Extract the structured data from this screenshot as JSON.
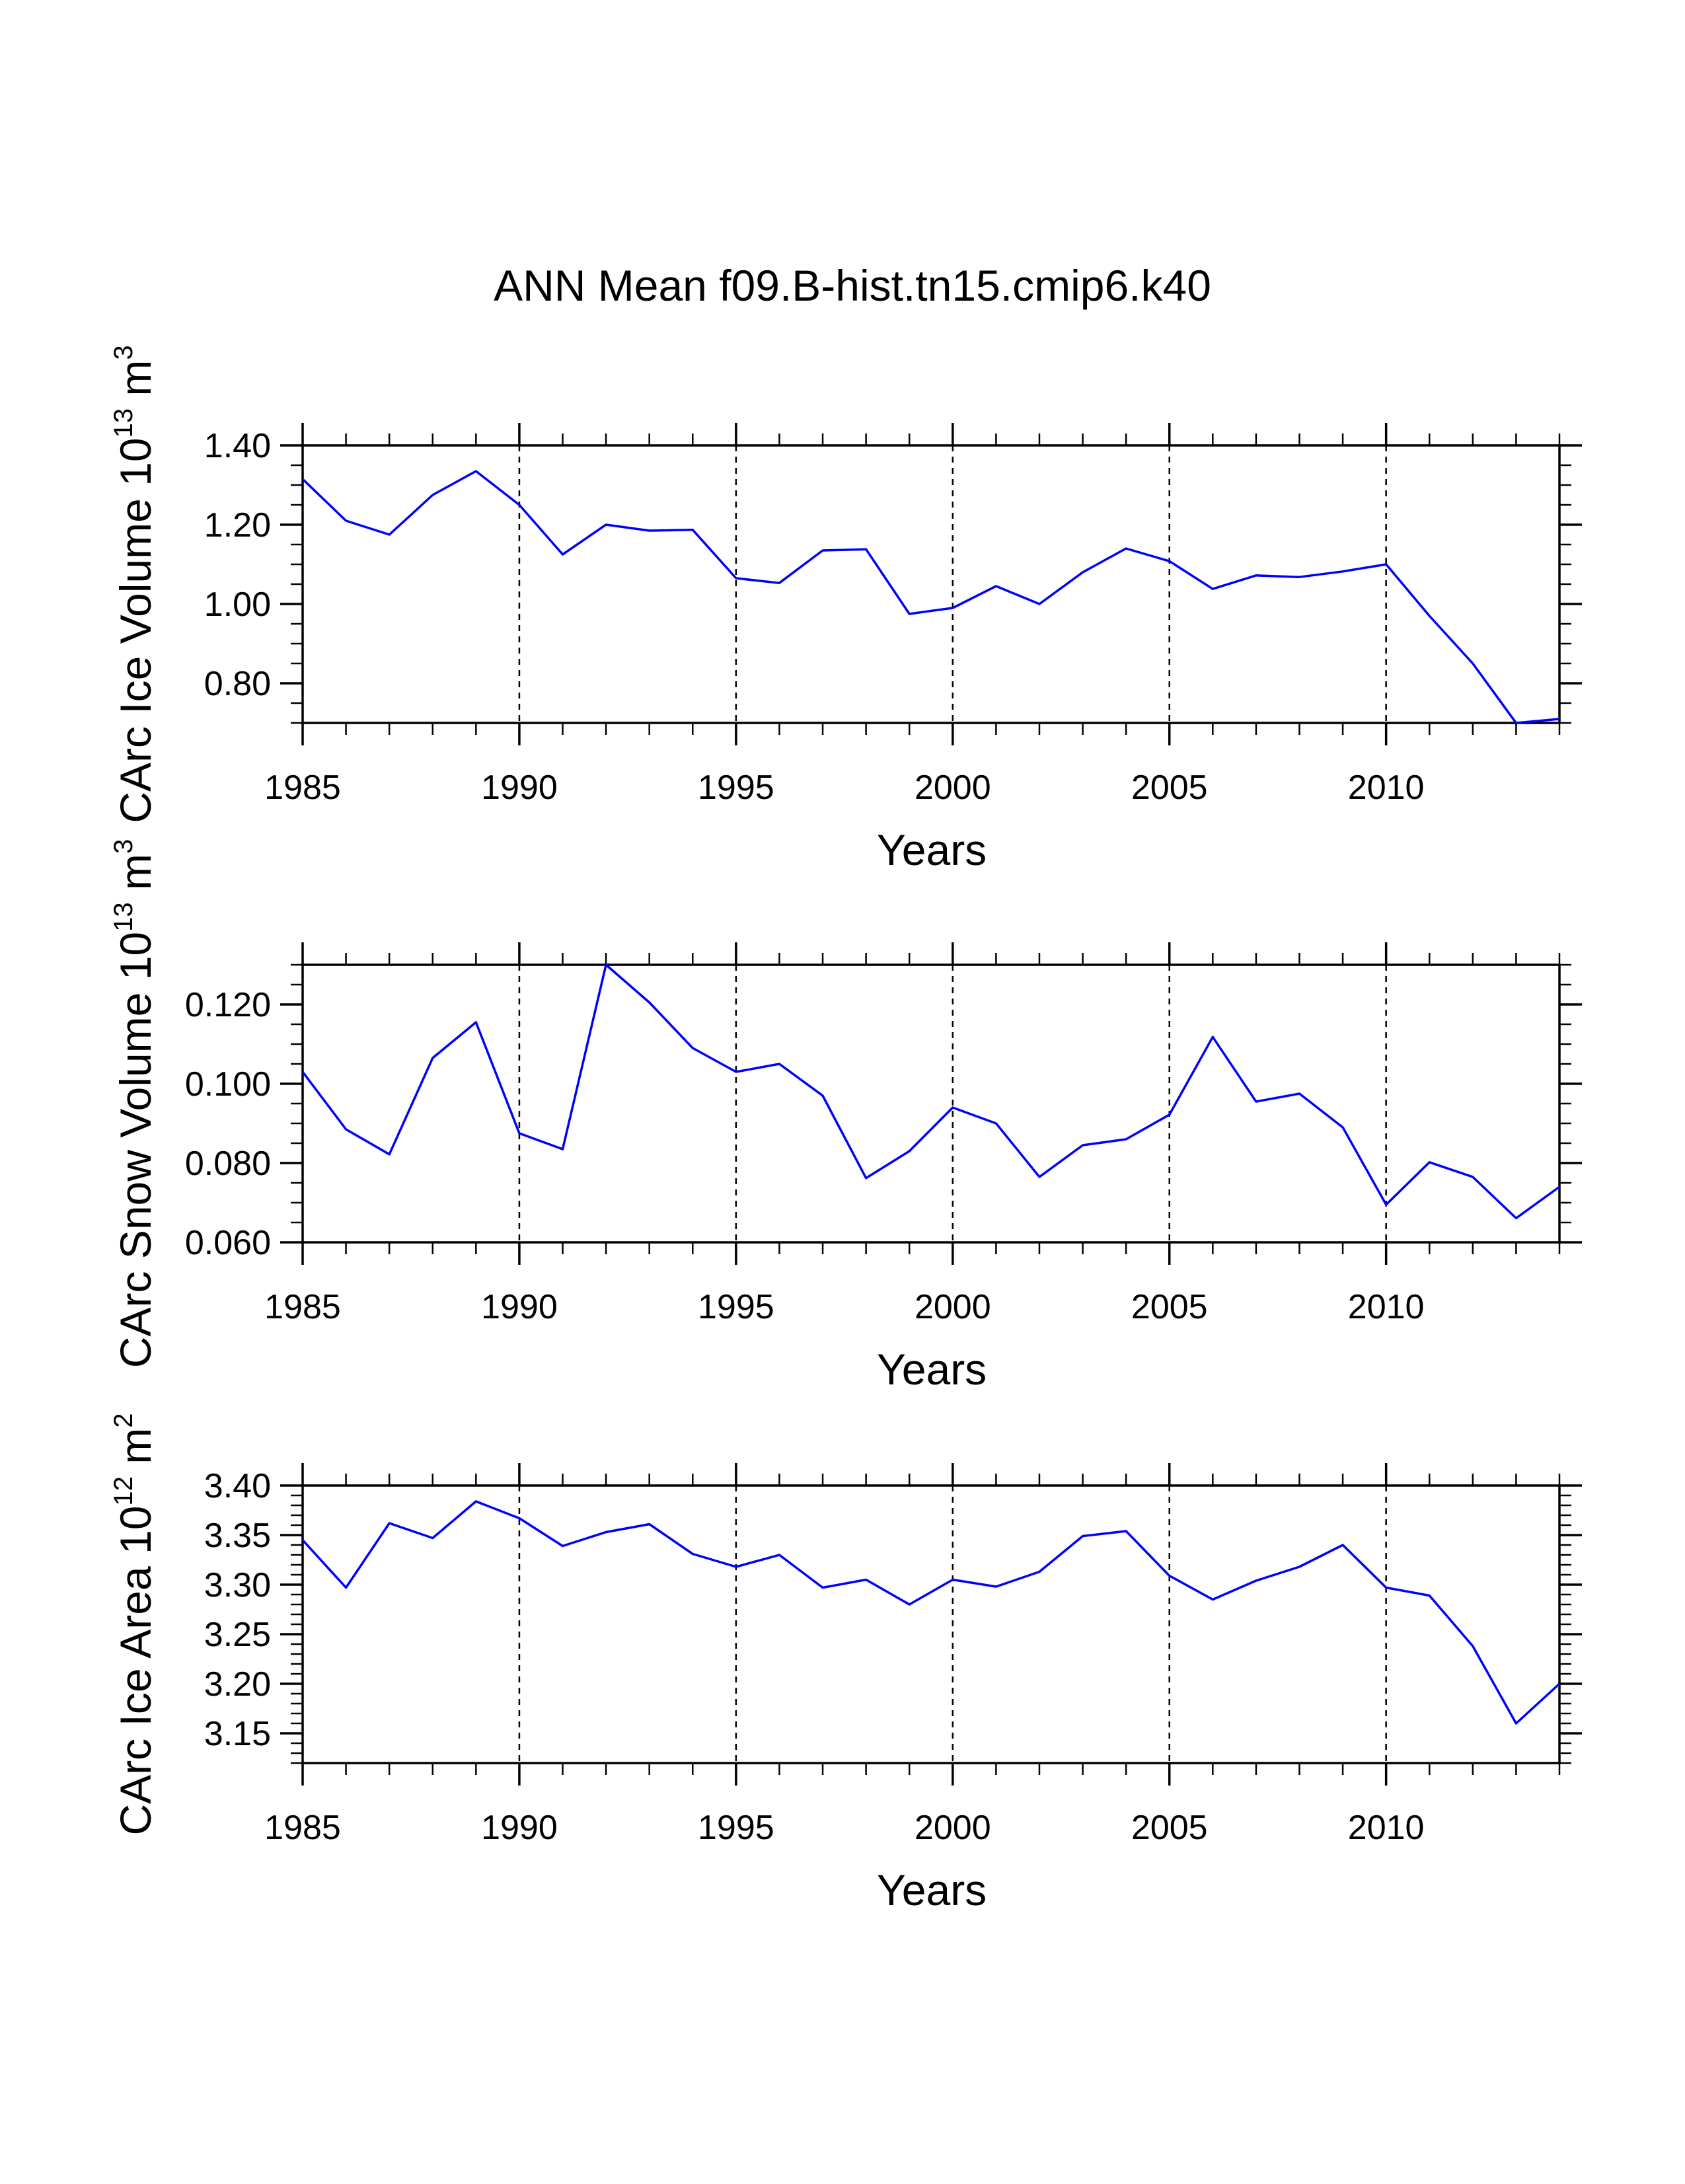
{
  "title": "ANN Mean f09.B-hist.tn15.cmip6.k40",
  "colors": {
    "line": "#0000ff",
    "axis": "#000000",
    "grid": "#000000",
    "background": "#ffffff"
  },
  "chart_data": [
    {
      "type": "line",
      "xlabel": "Years",
      "ylabel": "CArc Ice Volume 10",
      "ylabel_exponent": "13",
      "ylabel_unit": "m",
      "ylabel_unit_exponent": "3",
      "xlim": [
        1985,
        2014
      ],
      "ylim": [
        0.7,
        1.4
      ],
      "x_ticks": [
        1985,
        1990,
        1995,
        2000,
        2005,
        2010
      ],
      "x_tick_labels": [
        "1985",
        "1990",
        "1995",
        "2000",
        "2005",
        "2010"
      ],
      "y_ticks": [
        0.8,
        1.0,
        1.2,
        1.4
      ],
      "y_tick_labels": [
        "0.80",
        "1.00",
        "1.20",
        "1.40"
      ],
      "y_minor_step": 0.05,
      "dashed_gridlines_x": [
        1990,
        1995,
        2000,
        2005,
        2010
      ],
      "x": [
        1985,
        1986,
        1987,
        1988,
        1989,
        1990,
        1991,
        1992,
        1993,
        1994,
        1995,
        1996,
        1997,
        1998,
        1999,
        2000,
        2001,
        2002,
        2003,
        2004,
        2005,
        2006,
        2007,
        2008,
        2009,
        2010,
        2011,
        2012,
        2013,
        2014
      ],
      "values": [
        1.315,
        1.21,
        1.175,
        1.275,
        1.335,
        1.25,
        1.125,
        1.2,
        1.185,
        1.187,
        1.065,
        1.053,
        1.135,
        1.138,
        0.975,
        0.99,
        1.045,
        1.0,
        1.08,
        1.14,
        1.108,
        1.038,
        1.072,
        1.068,
        1.082,
        1.1,
        0.97,
        0.85,
        0.7,
        0.71
      ]
    },
    {
      "type": "line",
      "xlabel": "Years",
      "ylabel": "CArc Snow Volume 10",
      "ylabel_exponent": "13",
      "ylabel_unit": "m",
      "ylabel_unit_exponent": "3",
      "xlim": [
        1985,
        2014
      ],
      "ylim": [
        0.06,
        0.13
      ],
      "x_ticks": [
        1985,
        1990,
        1995,
        2000,
        2005,
        2010
      ],
      "x_tick_labels": [
        "1985",
        "1990",
        "1995",
        "2000",
        "2005",
        "2010"
      ],
      "y_ticks": [
        0.06,
        0.08,
        0.1,
        0.12
      ],
      "y_tick_labels": [
        "0.060",
        "0.080",
        "0.100",
        "0.120"
      ],
      "y_minor_step": 0.005,
      "dashed_gridlines_x": [
        1990,
        1995,
        2000,
        2005,
        2010
      ],
      "x": [
        1985,
        1986,
        1987,
        1988,
        1989,
        1990,
        1991,
        1992,
        1993,
        1994,
        1995,
        1996,
        1997,
        1998,
        1999,
        2000,
        2001,
        2002,
        2003,
        2004,
        2005,
        2006,
        2007,
        2008,
        2009,
        2010,
        2011,
        2012,
        2013,
        2014
      ],
      "values": [
        0.103,
        0.0885,
        0.0822,
        0.1065,
        0.1155,
        0.0875,
        0.0835,
        0.13,
        0.1205,
        0.109,
        0.103,
        0.105,
        0.097,
        0.0762,
        0.083,
        0.094,
        0.09,
        0.0765,
        0.0845,
        0.086,
        0.0922,
        0.1118,
        0.0955,
        0.0975,
        0.089,
        0.0695,
        0.0802,
        0.0765,
        0.0661,
        0.074
      ]
    },
    {
      "type": "line",
      "xlabel": "Years",
      "ylabel": "CArc Ice Area 10",
      "ylabel_exponent": "12",
      "ylabel_unit": "m",
      "ylabel_unit_exponent": "2",
      "xlim": [
        1985,
        2014
      ],
      "ylim": [
        3.12,
        3.4
      ],
      "x_ticks": [
        1985,
        1990,
        1995,
        2000,
        2005,
        2010
      ],
      "x_tick_labels": [
        "1985",
        "1990",
        "1995",
        "2000",
        "2005",
        "2010"
      ],
      "y_ticks": [
        3.15,
        3.2,
        3.25,
        3.3,
        3.35,
        3.4
      ],
      "y_tick_labels": [
        "3.15",
        "3.20",
        "3.25",
        "3.30",
        "3.35",
        "3.40"
      ],
      "y_minor_step": 0.01,
      "dashed_gridlines_x": [
        1990,
        1995,
        2000,
        2005,
        2010
      ],
      "x": [
        1985,
        1986,
        1987,
        1988,
        1989,
        1990,
        1991,
        1992,
        1993,
        1994,
        1995,
        1996,
        1997,
        1998,
        1999,
        2000,
        2001,
        2002,
        2003,
        2004,
        2005,
        2006,
        2007,
        2008,
        2009,
        2010,
        2011,
        2012,
        2013,
        2014
      ],
      "values": [
        3.345,
        3.297,
        3.362,
        3.347,
        3.384,
        3.367,
        3.339,
        3.353,
        3.361,
        3.331,
        3.318,
        3.33,
        3.297,
        3.305,
        3.28,
        3.305,
        3.298,
        3.313,
        3.349,
        3.354,
        3.309,
        3.285,
        3.304,
        3.318,
        3.34,
        3.297,
        3.289,
        3.238,
        3.16,
        3.2
      ]
    }
  ]
}
